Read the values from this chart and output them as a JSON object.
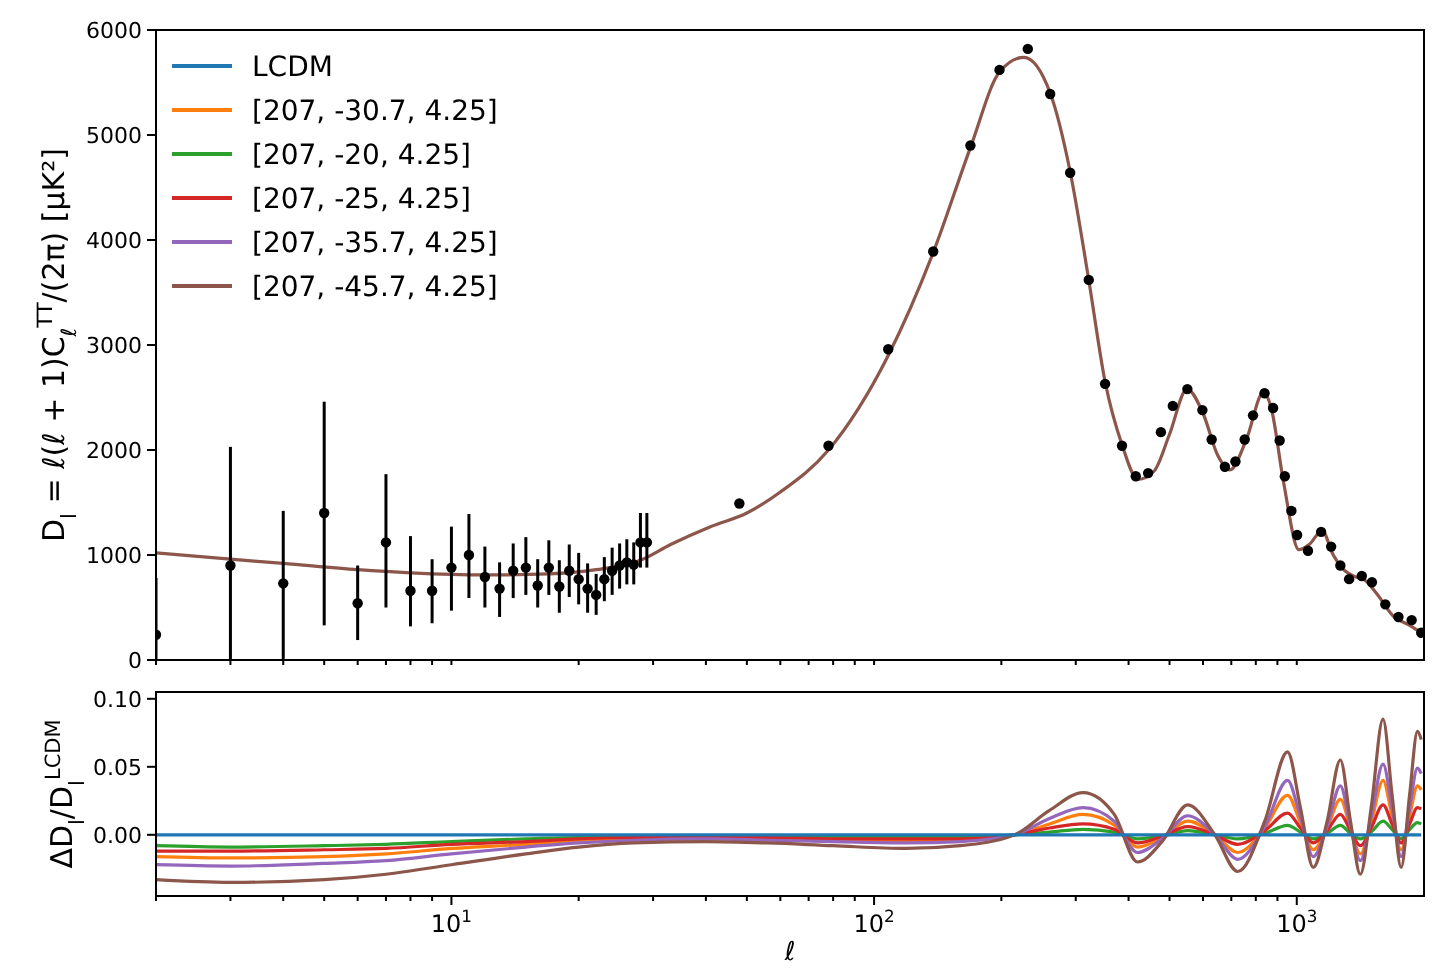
{
  "chart_data": [
    {
      "type": "line",
      "ylabel": "D$_{l}$ = ℓ(ℓ + 1)C$_{ℓ}$$^{TT}$/(2π) [μK²]",
      "log": "x",
      "xlim": [
        2,
        2000
      ],
      "ylim": [
        0,
        6000
      ],
      "tick_labels": "y",
      "legend": "top left",
      "xticks": [
        {
          "value": 2,
          "label": null
        },
        {
          "value": 3,
          "label": null
        },
        {
          "value": 4,
          "label": null
        },
        {
          "value": 5,
          "label": null
        },
        {
          "value": 6,
          "label": null
        },
        {
          "value": 7,
          "label": null
        },
        {
          "value": 8,
          "label": null
        },
        {
          "value": 9,
          "label": null
        },
        {
          "value": 10,
          "label": null
        },
        {
          "value": 20,
          "label": null
        },
        {
          "value": 30,
          "label": null
        },
        {
          "value": 40,
          "label": null
        },
        {
          "value": 50,
          "label": null
        },
        {
          "value": 60,
          "label": null
        },
        {
          "value": 70,
          "label": null
        },
        {
          "value": 80,
          "label": null
        },
        {
          "value": 90,
          "label": null
        },
        {
          "value": 100,
          "label": null
        },
        {
          "value": 200,
          "label": null
        },
        {
          "value": 300,
          "label": null
        },
        {
          "value": 400,
          "label": null
        },
        {
          "value": 500,
          "label": null
        },
        {
          "value": 600,
          "label": null
        },
        {
          "value": 700,
          "label": null
        },
        {
          "value": 800,
          "label": null
        },
        {
          "value": 900,
          "label": null
        },
        {
          "value": 1000,
          "label": null
        }
      ],
      "yticks": [
        0,
        1000,
        2000,
        3000,
        4000,
        5000,
        6000
      ],
      "x": [
        2,
        3,
        4,
        6,
        8,
        12,
        17,
        22,
        28,
        33,
        41,
        50,
        60,
        78,
        108,
        138,
        169,
        198,
        226,
        261,
        291,
        322,
        352,
        386,
        421,
        460,
        500,
        550,
        600,
        650,
        695,
        760,
        834,
        870,
        930,
        1012,
        1070,
        1148,
        1220,
        1300,
        1380,
        1450,
        1540,
        1700,
        1850,
        1970
      ],
      "series": [
        {
          "name": "LCDM",
          "color": "#1f77b4",
          "values": [
            null,
            null,
            null,
            null,
            null,
            null,
            null,
            null,
            null,
            null,
            null,
            null,
            null,
            null,
            null,
            null,
            null,
            null,
            null,
            null,
            null,
            null,
            null,
            null,
            null,
            null,
            null,
            null,
            null,
            null,
            null,
            null,
            null,
            null,
            null,
            null,
            null,
            null,
            null,
            null,
            null,
            null,
            null,
            null,
            null,
            null
          ]
        },
        {
          "name": "[207, -30.7, 4.25]",
          "color": "#ff7f0e",
          "values": [
            null,
            null,
            null,
            null,
            null,
            null,
            null,
            null,
            null,
            null,
            null,
            null,
            null,
            null,
            null,
            null,
            null,
            null,
            null,
            null,
            null,
            null,
            null,
            null,
            null,
            null,
            null,
            null,
            null,
            null,
            null,
            null,
            null,
            null,
            null,
            null,
            null,
            null,
            null,
            null,
            null,
            null,
            null,
            null,
            null,
            null
          ]
        },
        {
          "name": "[207, -20, 4.25]",
          "color": "#2ca02c",
          "values": [
            null,
            null,
            null,
            null,
            null,
            null,
            null,
            null,
            null,
            null,
            null,
            null,
            null,
            null,
            null,
            null,
            null,
            null,
            null,
            null,
            null,
            null,
            null,
            null,
            null,
            null,
            null,
            null,
            null,
            null,
            null,
            null,
            null,
            null,
            null,
            null,
            null,
            null,
            null,
            null,
            null,
            null,
            null,
            null,
            null,
            null
          ]
        },
        {
          "name": "[207, -25, 4.25]",
          "color": "#d62728",
          "values": [
            null,
            null,
            null,
            null,
            null,
            null,
            null,
            null,
            null,
            null,
            null,
            null,
            null,
            null,
            null,
            null,
            null,
            null,
            null,
            null,
            null,
            null,
            null,
            null,
            null,
            null,
            null,
            null,
            null,
            null,
            null,
            null,
            null,
            null,
            null,
            null,
            null,
            null,
            null,
            null,
            null,
            null,
            null,
            null,
            null,
            null
          ]
        },
        {
          "name": "[207, -35.7, 4.25]",
          "color": "#9467bd",
          "values": [
            null,
            null,
            null,
            null,
            null,
            null,
            null,
            null,
            null,
            null,
            null,
            null,
            null,
            null,
            null,
            null,
            null,
            null,
            null,
            null,
            null,
            null,
            null,
            null,
            null,
            null,
            null,
            null,
            null,
            null,
            null,
            null,
            null,
            null,
            null,
            null,
            null,
            null,
            null,
            null,
            null,
            null,
            null,
            null,
            null,
            null
          ]
        },
        {
          "name": "[207, -45.7, 4.25]",
          "color": "#8c564b",
          "values": [
            1020,
            960,
            920,
            860,
            830,
            810,
            820,
            860,
            950,
            1100,
            1270,
            1400,
            1600,
            2000,
            2900,
            3880,
            4880,
            5600,
            5740,
            5400,
            4650,
            3620,
            2650,
            2050,
            1720,
            1800,
            2150,
            2580,
            2350,
            1950,
            1810,
            2100,
            2550,
            2400,
            1700,
            1050,
            1100,
            1230,
            1000,
            850,
            790,
            760,
            640,
            410,
            330,
            260
          ]
        },
        {
          "type": "scatter",
          "color": "#000000",
          "marker": "circle",
          "x": [
            2,
            3,
            4,
            5,
            6,
            7,
            8,
            9,
            10,
            11,
            12,
            13,
            14,
            15,
            16,
            17,
            18,
            19,
            20,
            21,
            22,
            23,
            24,
            25,
            26,
            27,
            28,
            29,
            48,
            78,
            108,
            138,
            169,
            198,
            231,
            261,
            291,
            322,
            352,
            386,
            416,
            445,
            477,
            509,
            551,
            598,
            629,
            676,
            716,
            753,
            788,
            839,
            879,
            911,
            937,
            971,
            1002,
            1063,
            1142,
            1206,
            1268,
            1330,
            1425,
            1506,
            1620,
            1740,
            1870,
            1970
          ],
          "values": [
            240,
            900,
            730,
            1400,
            540,
            1120,
            660,
            660,
            880,
            1000,
            790,
            680,
            850,
            880,
            710,
            880,
            700,
            850,
            770,
            680,
            620,
            770,
            850,
            900,
            930,
            910,
            1120,
            1120,
            1490,
            2040,
            2960,
            3890,
            4900,
            5620,
            5820,
            5390,
            4640,
            3620,
            2630,
            2040,
            1750,
            1780,
            2170,
            2420,
            2580,
            2380,
            2100,
            1840,
            1890,
            2100,
            2330,
            2540,
            2400,
            2090,
            1750,
            1420,
            1190,
            1040,
            1220,
            1080,
            900,
            770,
            800,
            740,
            530,
            410,
            380,
            260
          ],
          "errors": [
            [
              0,
              780
            ],
            [
              0,
              2030
            ],
            [
              0,
              1420
            ],
            [
              330,
              2460
            ],
            [
              190,
              900
            ],
            [
              500,
              1770
            ],
            [
              320,
              1180
            ],
            [
              350,
              960
            ],
            [
              470,
              1270
            ],
            [
              590,
              1390
            ],
            [
              500,
              1080
            ],
            [
              410,
              930
            ],
            [
              590,
              1110
            ],
            [
              620,
              1170
            ],
            [
              500,
              960
            ],
            [
              620,
              1140
            ],
            [
              450,
              950
            ],
            [
              600,
              1100
            ],
            [
              530,
              1020
            ],
            [
              450,
              920
            ],
            [
              430,
              820
            ],
            [
              560,
              980
            ],
            [
              620,
              1070
            ],
            [
              680,
              1110
            ],
            [
              720,
              1150
            ],
            [
              720,
              1120
            ],
            [
              880,
              1400
            ],
            [
              880,
              1400
            ],
            null,
            null,
            null,
            null,
            null,
            null,
            null,
            null,
            null,
            null,
            null,
            null,
            null,
            null,
            null,
            null,
            null,
            null,
            null,
            null,
            null,
            null,
            null,
            null,
            null,
            null,
            null,
            null,
            null,
            null,
            null,
            null,
            null,
            null,
            null,
            null,
            null,
            null,
            null,
            null
          ]
        }
      ]
    },
    {
      "type": "line",
      "xlabel": "ℓ",
      "ylabel": "ΔD$_{l}$/D$_{l}$$^{LCDM}$",
      "log": "x",
      "xlim": [
        2,
        2000
      ],
      "ylim": [
        -0.045,
        0.105
      ],
      "xticks": [
        {
          "value": 2,
          "label": null
        },
        {
          "value": 3,
          "label": null
        },
        {
          "value": 4,
          "label": null
        },
        {
          "value": 5,
          "label": null
        },
        {
          "value": 6,
          "label": null
        },
        {
          "value": 7,
          "label": null
        },
        {
          "value": 8,
          "label": null
        },
        {
          "value": 9,
          "label": null
        },
        {
          "value": 10,
          "label": "10$^{1}$"
        },
        {
          "value": 20,
          "label": null
        },
        {
          "value": 30,
          "label": null
        },
        {
          "value": 40,
          "label": null
        },
        {
          "value": 50,
          "label": null
        },
        {
          "value": 60,
          "label": null
        },
        {
          "value": 70,
          "label": null
        },
        {
          "value": 80,
          "label": null
        },
        {
          "value": 90,
          "label": null
        },
        {
          "value": 100,
          "label": "10$^{2}$"
        },
        {
          "value": 200,
          "label": null
        },
        {
          "value": 300,
          "label": null
        },
        {
          "value": 400,
          "label": null
        },
        {
          "value": 500,
          "label": null
        },
        {
          "value": 600,
          "label": null
        },
        {
          "value": 700,
          "label": null
        },
        {
          "value": 800,
          "label": null
        },
        {
          "value": 900,
          "label": null
        },
        {
          "value": 1000,
          "label": "10$^{3}$"
        }
      ],
      "yticks": [
        {
          "value": 0,
          "label": "0.00"
        },
        {
          "value": 0.05,
          "label": "0.05"
        },
        {
          "value": 0.1,
          "label": "0.10"
        }
      ],
      "x": [
        2,
        3,
        5,
        7,
        10,
        15,
        20,
        27,
        40,
        56,
        80,
        119,
        160,
        215,
        260,
        312,
        370,
        420,
        480,
        552,
        640,
        725,
        840,
        951,
        1020,
        1094,
        1180,
        1268,
        1340,
        1414,
        1500,
        1600,
        1680,
        1766,
        1850,
        1930,
        1970
      ],
      "series": [
        {
          "color": "#ff7f0e",
          "values": [
            -0.016,
            -0.017,
            -0.016,
            -0.014,
            -0.01,
            -0.007,
            -0.004,
            -0.003,
            -0.002,
            -0.003,
            -0.004,
            -0.005,
            -0.004,
            0.0,
            0.008,
            0.015,
            0.007,
            -0.009,
            -0.002,
            0.01,
            0.0,
            -0.013,
            0.005,
            0.029,
            0.009,
            -0.011,
            0.005,
            0.026,
            0.005,
            -0.014,
            0.009,
            0.04,
            0.014,
            -0.011,
            0.014,
            0.036,
            0.033
          ]
        },
        {
          "color": "#2ca02c",
          "values": [
            -0.008,
            -0.009,
            -0.008,
            -0.007,
            -0.005,
            -0.003,
            -0.002,
            -0.002,
            -0.001,
            -0.002,
            -0.002,
            -0.0015,
            -0.002,
            0.0,
            0.002,
            0.004,
            0.002,
            -0.003,
            -0.001,
            0.003,
            0.0,
            -0.003,
            0.001,
            0.007,
            0.002,
            -0.003,
            0.001,
            0.007,
            0.001,
            -0.003,
            0.002,
            0.01,
            0.004,
            -0.003,
            0.004,
            0.009,
            0.008
          ]
        },
        {
          "color": "#d62728",
          "values": [
            -0.012,
            -0.012,
            -0.011,
            -0.01,
            -0.007,
            -0.005,
            -0.003,
            -0.002,
            -0.002,
            -0.002,
            -0.003,
            -0.003,
            -0.003,
            0.0,
            0.005,
            0.008,
            0.004,
            -0.006,
            -0.001,
            0.006,
            0.0,
            -0.007,
            0.003,
            0.016,
            0.005,
            -0.006,
            0.003,
            0.015,
            0.003,
            -0.008,
            0.005,
            0.022,
            0.008,
            -0.006,
            0.008,
            0.02,
            0.019
          ]
        },
        {
          "color": "#9467bd",
          "values": [
            -0.022,
            -0.023,
            -0.021,
            -0.019,
            -0.014,
            -0.009,
            -0.006,
            -0.004,
            -0.003,
            -0.004,
            -0.005,
            -0.006,
            -0.005,
            0.0,
            0.012,
            0.02,
            0.01,
            -0.013,
            -0.003,
            0.014,
            0.0,
            -0.018,
            0.006,
            0.04,
            0.013,
            -0.016,
            0.006,
            0.036,
            0.006,
            -0.019,
            0.013,
            0.052,
            0.02,
            -0.016,
            0.02,
            0.049,
            0.045
          ]
        },
        {
          "color": "#8c564b",
          "values": [
            -0.033,
            -0.035,
            -0.033,
            -0.029,
            -0.022,
            -0.014,
            -0.009,
            -0.006,
            -0.005,
            -0.006,
            -0.008,
            -0.01,
            -0.008,
            0.0,
            0.018,
            0.031,
            0.015,
            -0.02,
            -0.005,
            0.022,
            0.0,
            -0.027,
            0.01,
            0.061,
            0.02,
            -0.024,
            0.01,
            0.055,
            0.01,
            -0.029,
            0.02,
            0.085,
            0.03,
            -0.024,
            0.03,
            0.076,
            0.07
          ]
        },
        {
          "color": "#1f77b4",
          "values": [
            0,
            0,
            0,
            0,
            0,
            0,
            0,
            0,
            0,
            0,
            0,
            0,
            0,
            0,
            0,
            0,
            0,
            0,
            0,
            0,
            0,
            0,
            0,
            0,
            0,
            0,
            0,
            0,
            0,
            0,
            0,
            0,
            0,
            0,
            0,
            0,
            0
          ]
        }
      ]
    }
  ]
}
